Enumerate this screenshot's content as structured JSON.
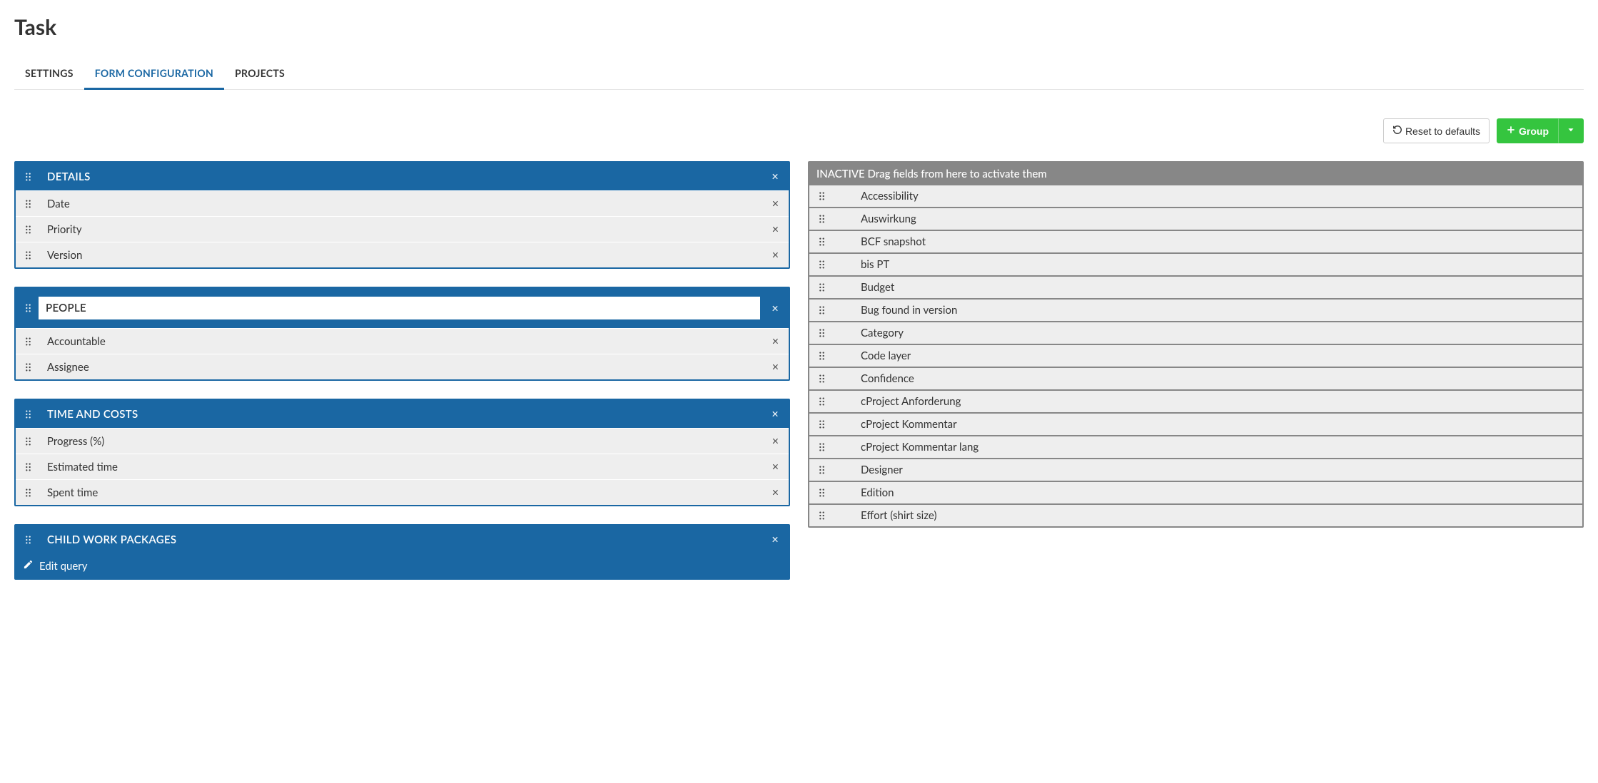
{
  "page_title": "Task",
  "tabs": [
    {
      "label": "SETTINGS",
      "active": false
    },
    {
      "label": "FORM CONFIGURATION",
      "active": true
    },
    {
      "label": "PROJECTS",
      "active": false
    }
  ],
  "toolbar": {
    "reset_label": "Reset to defaults",
    "group_label": "Group"
  },
  "active_groups": [
    {
      "title": "DETAILS",
      "editing": false,
      "fields": [
        "Date",
        "Priority",
        "Version"
      ]
    },
    {
      "title": "PEOPLE",
      "editing": true,
      "fields": [
        "Accountable",
        "Assignee"
      ]
    },
    {
      "title": "TIME AND COSTS",
      "editing": false,
      "fields": [
        "Progress (%)",
        "Estimated time",
        "Spent time"
      ]
    },
    {
      "title": "CHILD WORK PACKAGES",
      "editing": false,
      "fields": [],
      "footer": {
        "label": "Edit query"
      }
    }
  ],
  "inactive": {
    "header": "INACTIVE Drag fields from here to activate them",
    "fields": [
      "Accessibility",
      "Auswirkung",
      "BCF snapshot",
      "bis PT",
      "Budget",
      "Bug found in version",
      "Category",
      "Code layer",
      "Confidence",
      "cProject Anforderung",
      "cProject Kommentar",
      "cProject Kommentar lang",
      "Designer",
      "Edition",
      "Effort (shirt size)"
    ]
  },
  "colors": {
    "accent": "#1a67a3",
    "success": "#35c53f",
    "inactive_header": "#878787",
    "row_bg": "#eeeeee",
    "text": "#333333"
  }
}
